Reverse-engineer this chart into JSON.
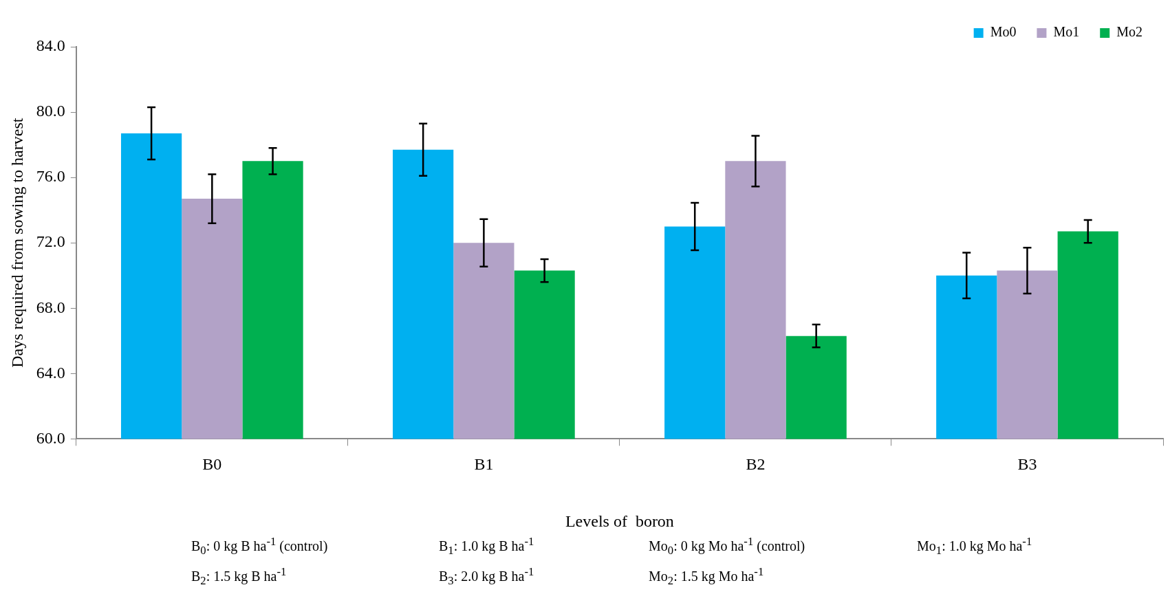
{
  "chart_data": {
    "type": "bar",
    "xlabel": "Levels of  boron",
    "ylabel": "Days required from sowing to harvest",
    "categories": [
      "B0",
      "B1",
      "B2",
      "B3"
    ],
    "series": [
      {
        "name": "Mo0",
        "color": "#00b0f0",
        "values": [
          78.7,
          77.7,
          73.0,
          70.0
        ],
        "errors": [
          1.6,
          1.6,
          1.45,
          1.4
        ]
      },
      {
        "name": "Mo1",
        "color": "#b2a2c7",
        "values": [
          74.7,
          72.0,
          77.0,
          70.3
        ],
        "errors": [
          1.5,
          1.45,
          1.55,
          1.4
        ]
      },
      {
        "name": "Mo2",
        "color": "#00b050",
        "values": [
          77.0,
          70.3,
          66.3,
          72.7
        ],
        "errors": [
          0.8,
          0.7,
          0.7,
          0.7
        ]
      }
    ],
    "ylim": [
      60,
      84
    ],
    "yticks": [
      {
        "value": 60,
        "label": "60.0"
      },
      {
        "value": 64,
        "label": "64.0"
      },
      {
        "value": 68,
        "label": "68.0"
      },
      {
        "value": 72,
        "label": "72.0"
      },
      {
        "value": 76,
        "label": "76.0"
      },
      {
        "value": 80,
        "label": "80.0"
      },
      {
        "value": 84,
        "label": "84.0"
      }
    ],
    "grid": false,
    "legend": "top right",
    "annotations": [
      "B$_{0}$: 0 kg B ha$^{-1}$ (control)",
      "B$_{1}$: 1.0 kg B ha$^{-1}$",
      "Mo$_{0}$: 0 kg Mo ha$^{-1}$ (control)",
      "Mo$_{1}$: 1.0 kg  Mo ha$^{-1}$",
      "B$_{2}$: 1.5 kg B ha$^{-1}$",
      "B$_{3}$: 2.0 kg B ha$^{-1}$",
      "Mo$_{2}$: 1.5 kg Mo ha$^{-1}$"
    ]
  }
}
